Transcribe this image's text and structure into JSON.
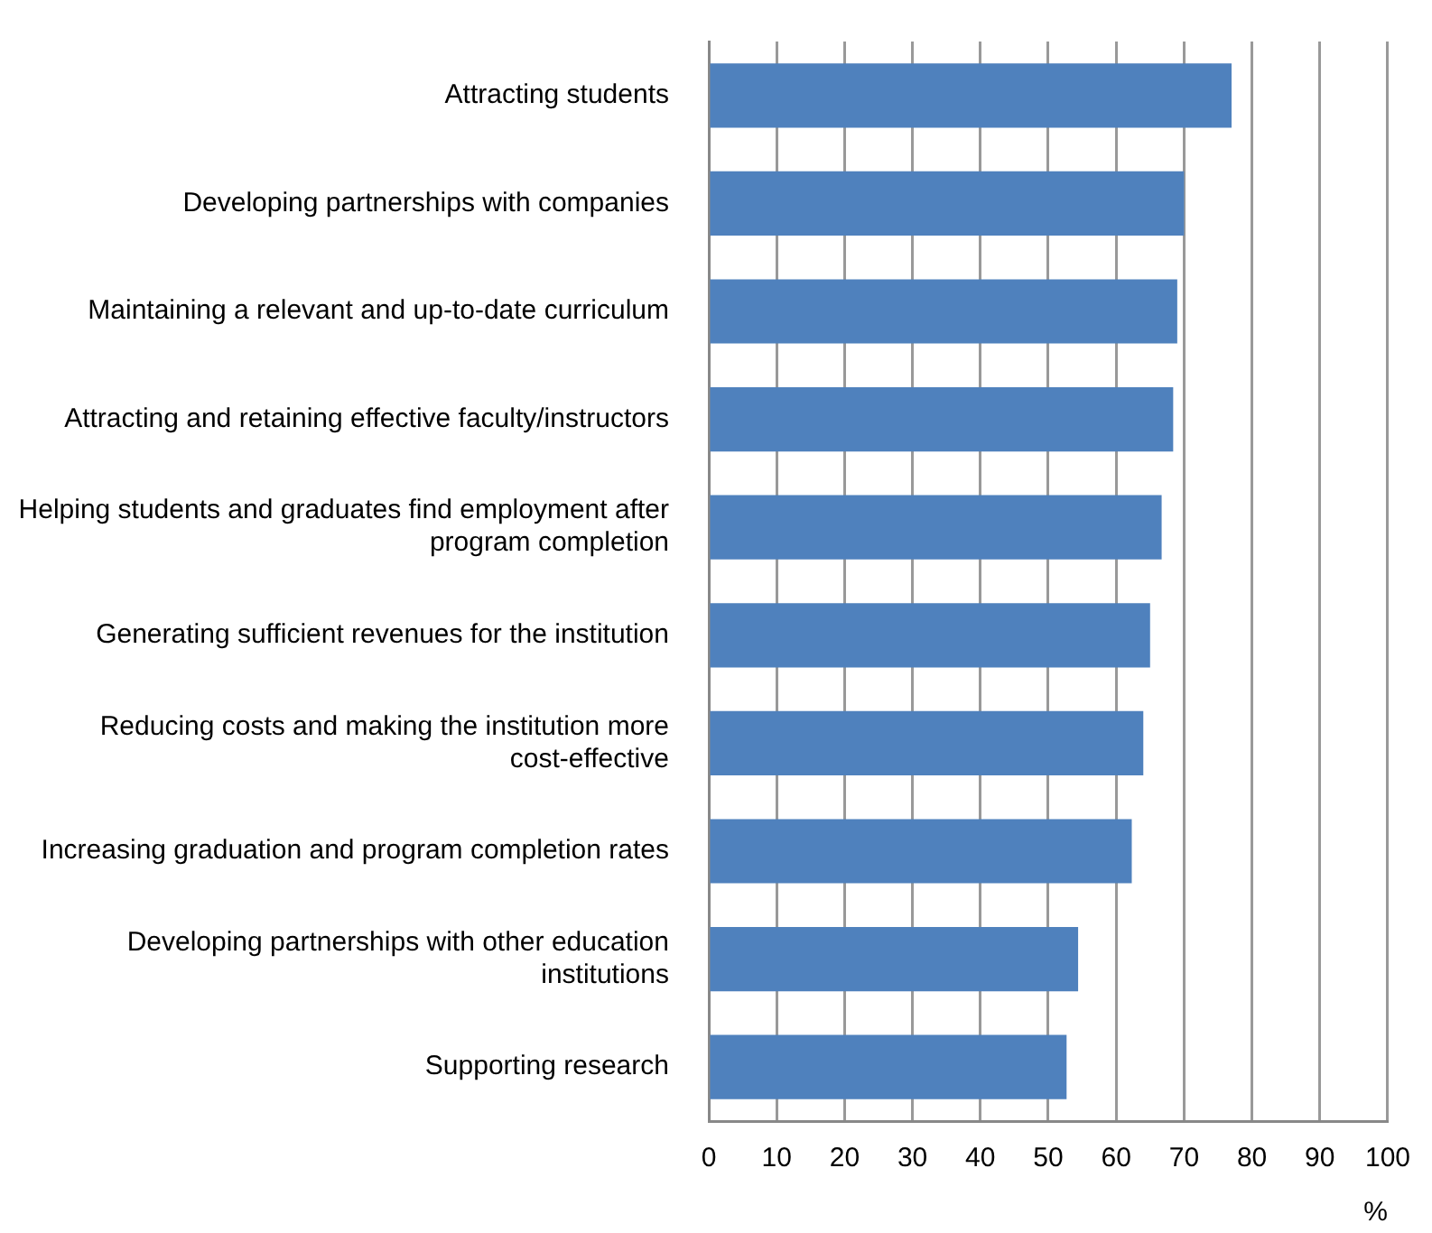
{
  "chart_data": {
    "type": "bar",
    "orientation": "horizontal",
    "xlabel": "%",
    "categories": [
      "Attracting students",
      "Developing partnerships with companies",
      "Maintaining a relevant and up-to-date curriculum",
      "Attracting and retaining effective faculty/instructors",
      "Helping students and graduates find employment after program completion",
      "Generating sufficient revenues for the institution",
      "Reducing costs and making the institution more cost-effective",
      "Increasing graduation and program completion rates",
      "Developing partnerships with other education institutions",
      "Supporting research"
    ],
    "values": [
      77,
      70,
      69,
      68.4,
      66.7,
      65,
      64,
      62.3,
      54.4,
      52.7
    ],
    "color": "#4f81bd",
    "xlim": [
      0,
      100
    ],
    "xticks": [
      0,
      10,
      20,
      30,
      40,
      50,
      60,
      70,
      80,
      90,
      100
    ],
    "grid": "x",
    "legend": false
  }
}
